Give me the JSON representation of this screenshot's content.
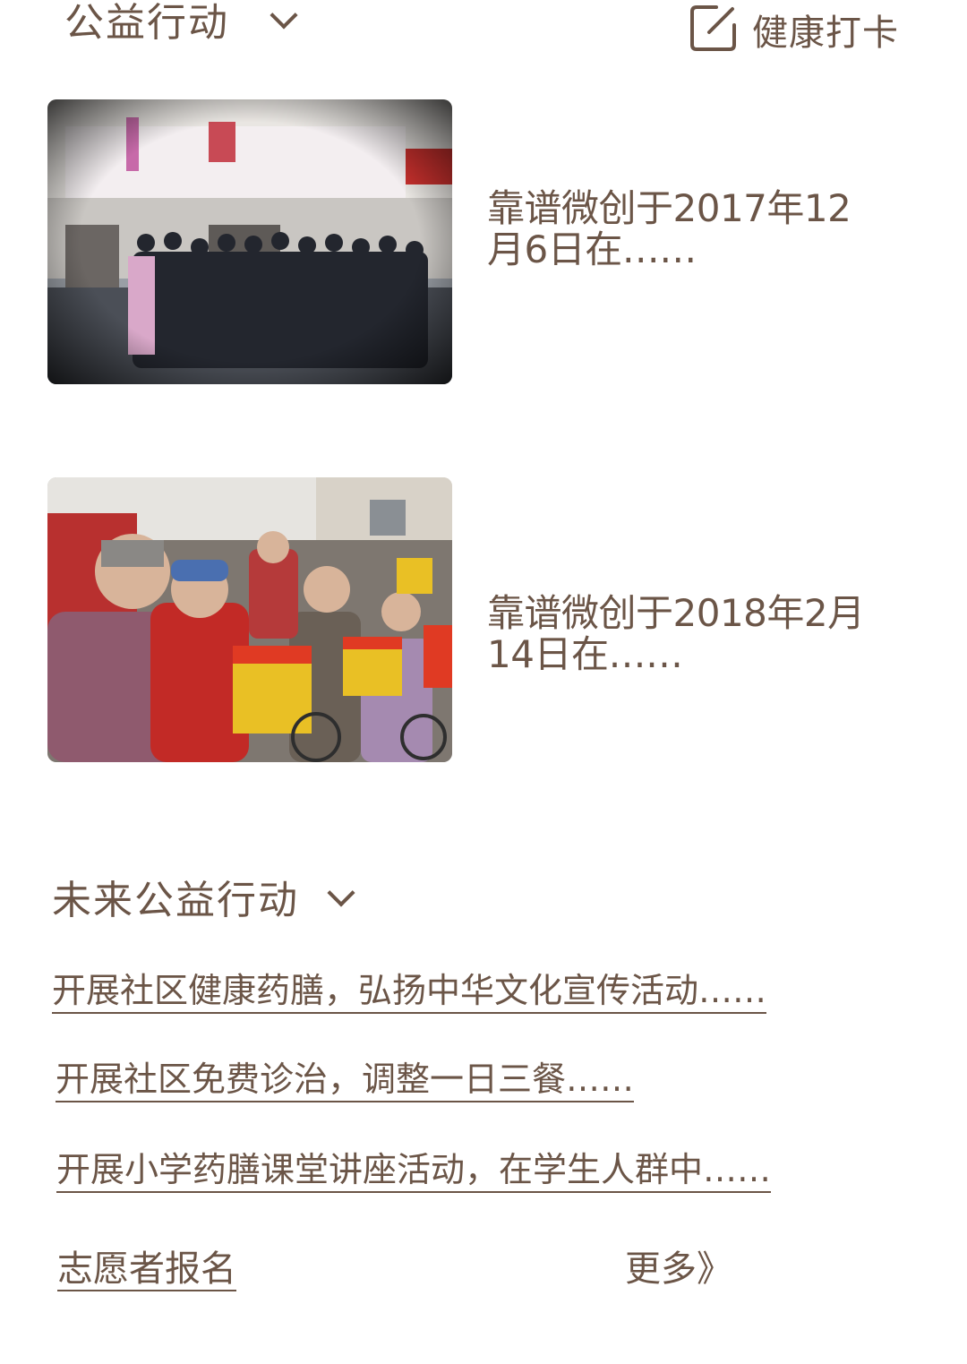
{
  "header": {
    "section_title": "公益行动",
    "checkin_label": "健康打卡"
  },
  "activities": [
    {
      "text": "靠谱微创于2017年12月6日在……"
    },
    {
      "text": "靠谱微创于2018年2月14日在……"
    }
  ],
  "future": {
    "title": "未来公益行动",
    "items": [
      "开展社区健康药膳，弘扬中华文化宣传活动……",
      "开展社区免费诊治，调整一日三餐……",
      "开展小学药膳课堂讲座活动，在学生人群中……"
    ]
  },
  "footer": {
    "volunteer_label": "志愿者报名",
    "more_label": "更多》"
  },
  "icons": {
    "section_toggle": "chevron-down-icon",
    "checkin": "edit-square-icon"
  },
  "colors": {
    "text": "#6b5547",
    "background": "#ffffff"
  }
}
